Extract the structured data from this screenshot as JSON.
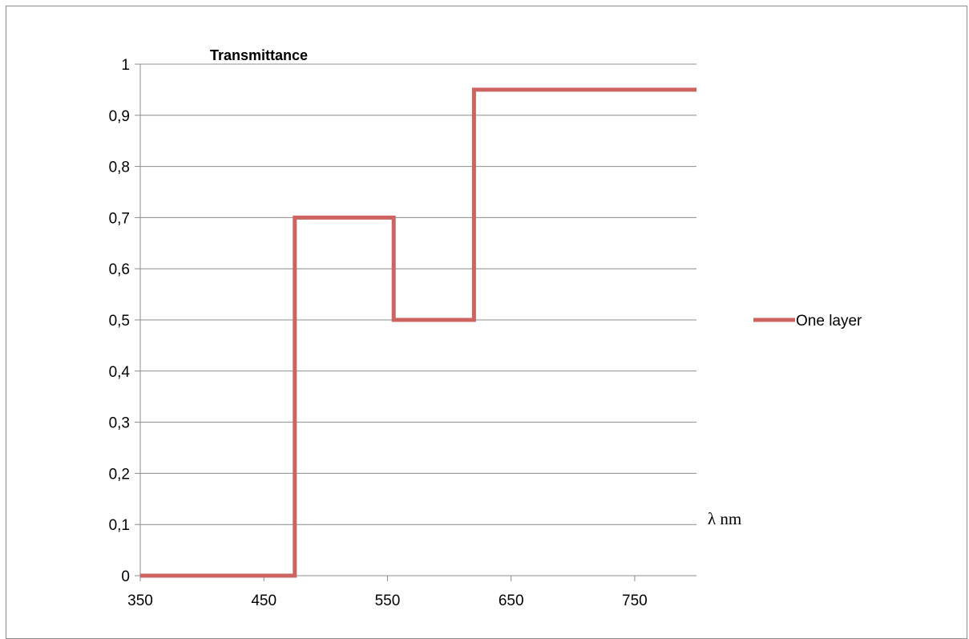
{
  "chart_data": {
    "type": "line",
    "ylabel": "Transmittance",
    "xlabel": "λ nm",
    "xlim": [
      350,
      800
    ],
    "ylim": [
      0,
      1
    ],
    "x_ticks": [
      350,
      450,
      550,
      650,
      750
    ],
    "x_tick_labels": [
      "350",
      "450",
      "550",
      "650",
      "750"
    ],
    "y_ticks": [
      0,
      0.1,
      0.2,
      0.3,
      0.4,
      0.5,
      0.6,
      0.7,
      0.8,
      0.9,
      1
    ],
    "y_tick_labels": [
      "0",
      "0,1",
      "0,2",
      "0,3",
      "0,4",
      "0,5",
      "0,6",
      "0,7",
      "0,8",
      "0,9",
      "1"
    ],
    "grid": "horizontal",
    "legend_position": "right",
    "series": [
      {
        "name": "One layer",
        "color": "#cd6461",
        "x": [
          350,
          475,
          475,
          555,
          555,
          620,
          620,
          800
        ],
        "y": [
          0,
          0,
          0.7,
          0.7,
          0.5,
          0.5,
          0.95,
          0.95
        ]
      }
    ]
  }
}
